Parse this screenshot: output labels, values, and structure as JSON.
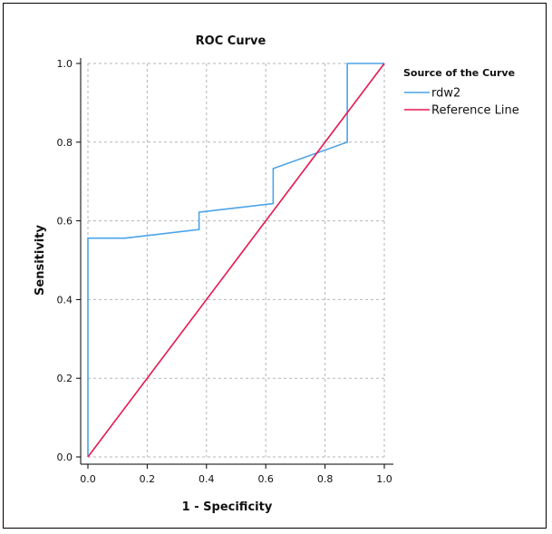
{
  "chart_data": {
    "type": "line",
    "title": "ROC Curve",
    "xlabel": "1 - Specificity",
    "ylabel": "Sensitivity",
    "xlim": [
      0.0,
      1.0
    ],
    "ylim": [
      0.0,
      1.0
    ],
    "x_ticks": [
      "0.0",
      "0.2",
      "0.4",
      "0.6",
      "0.8",
      "1.0"
    ],
    "y_ticks": [
      "0.0",
      "0.2",
      "0.4",
      "0.6",
      "0.8",
      "1.0"
    ],
    "grid": true,
    "legend": {
      "title": "Source of the Curve",
      "placement": "top-right"
    },
    "series": [
      {
        "name": "rdw2",
        "color": "#4aa3e8",
        "x": [
          0.0,
          0.0,
          0.125,
          0.375,
          0.375,
          0.625,
          0.625,
          0.875,
          0.875,
          1.0
        ],
        "y": [
          0.0,
          0.556,
          0.556,
          0.578,
          0.622,
          0.644,
          0.733,
          0.8,
          1.0,
          1.0
        ]
      },
      {
        "name": "Reference Line",
        "color": "#e8174f",
        "x": [
          0.0,
          1.0
        ],
        "y": [
          0.0,
          1.0
        ]
      }
    ]
  }
}
